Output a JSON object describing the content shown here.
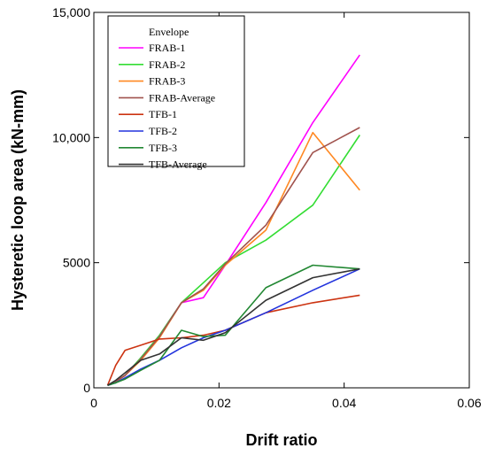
{
  "chart_data": {
    "type": "line",
    "title": "",
    "xlabel": "Drift ratio",
    "ylabel": "Hysteretic loop area (kN-mm)",
    "xlim": [
      0,
      0.06
    ],
    "ylim": [
      0,
      15000
    ],
    "xticks": [
      "0",
      "0.02",
      "0.04",
      "0.06"
    ],
    "xtick_values": [
      0,
      0.02,
      0.04,
      0.06
    ],
    "yticks": [
      "0",
      "5000",
      "10,000",
      "15,000"
    ],
    "ytick_values": [
      0,
      5000,
      10000,
      15000
    ],
    "grid": false,
    "legend_title": "Envelope",
    "legend_position": "top-left",
    "series": [
      {
        "name": "FRAB-1",
        "color": "#ff00ff",
        "x": [
          0.0022,
          0.0035,
          0.005,
          0.0075,
          0.0105,
          0.014,
          0.0175,
          0.021,
          0.0275,
          0.035,
          0.0425
        ],
        "y": [
          100,
          250,
          500,
          1200,
          2100,
          3400,
          3600,
          4900,
          7400,
          10600,
          13300
        ]
      },
      {
        "name": "FRAB-2",
        "color": "#33dd33",
        "x": [
          0.0022,
          0.0035,
          0.005,
          0.0075,
          0.0105,
          0.014,
          0.0175,
          0.021,
          0.0275,
          0.035,
          0.0425
        ],
        "y": [
          100,
          250,
          500,
          1200,
          2100,
          3400,
          4200,
          5000,
          5900,
          7300,
          10100
        ]
      },
      {
        "name": "FRAB-3",
        "color": "#ff8822",
        "x": [
          0.0022,
          0.0035,
          0.005,
          0.0075,
          0.0105,
          0.014,
          0.0175,
          0.021,
          0.0275,
          0.035,
          0.0425
        ],
        "y": [
          100,
          250,
          500,
          1100,
          2000,
          3400,
          3900,
          4900,
          6300,
          10200,
          7900
        ]
      },
      {
        "name": "FRAB-Average",
        "color": "#a0524d",
        "x": [
          0.0022,
          0.0035,
          0.005,
          0.0075,
          0.0105,
          0.014,
          0.0175,
          0.021,
          0.0275,
          0.035,
          0.0425
        ],
        "y": [
          100,
          250,
          500,
          1150,
          2050,
          3400,
          3950,
          4950,
          6500,
          9400,
          10400
        ]
      },
      {
        "name": "TFB-1",
        "color": "#cc3311",
        "x": [
          0.0022,
          0.0035,
          0.005,
          0.0075,
          0.0105,
          0.014,
          0.0175,
          0.021,
          0.0275,
          0.035,
          0.0425
        ],
        "y": [
          100,
          900,
          1500,
          1700,
          1950,
          2000,
          2100,
          2300,
          3000,
          3400,
          3700
        ]
      },
      {
        "name": "TFB-2",
        "color": "#2233dd",
        "x": [
          0.0022,
          0.0035,
          0.005,
          0.0075,
          0.0105,
          0.014,
          0.0175,
          0.021,
          0.0275,
          0.035,
          0.0425
        ],
        "y": [
          100,
          200,
          400,
          750,
          1100,
          1600,
          2000,
          2300,
          3000,
          3900,
          4750
        ]
      },
      {
        "name": "TFB-3",
        "color": "#228833",
        "x": [
          0.0022,
          0.0035,
          0.005,
          0.0075,
          0.0105,
          0.014,
          0.0175,
          0.021,
          0.0275,
          0.035,
          0.0425
        ],
        "y": [
          100,
          200,
          350,
          700,
          1100,
          2300,
          2050,
          2100,
          4000,
          4900,
          4750
        ]
      },
      {
        "name": "TFB-Average",
        "color": "#333333",
        "x": [
          0.0022,
          0.0035,
          0.005,
          0.0075,
          0.0105,
          0.014,
          0.0175,
          0.021,
          0.0275,
          0.035,
          0.0425
        ],
        "y": [
          100,
          300,
          600,
          1100,
          1350,
          2000,
          1900,
          2200,
          3500,
          4400,
          4750
        ]
      }
    ]
  }
}
